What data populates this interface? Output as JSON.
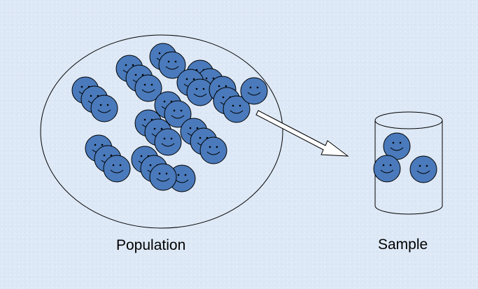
{
  "labels": {
    "population": "Population",
    "sample": "Sample"
  },
  "colors": {
    "face_fill": "#4a7abb",
    "stroke": "#000000",
    "background": "#dde8f6"
  },
  "icons": {
    "face": "smiley-face-icon",
    "arrow": "arrow-right-icon",
    "container": "cylinder-icon"
  }
}
